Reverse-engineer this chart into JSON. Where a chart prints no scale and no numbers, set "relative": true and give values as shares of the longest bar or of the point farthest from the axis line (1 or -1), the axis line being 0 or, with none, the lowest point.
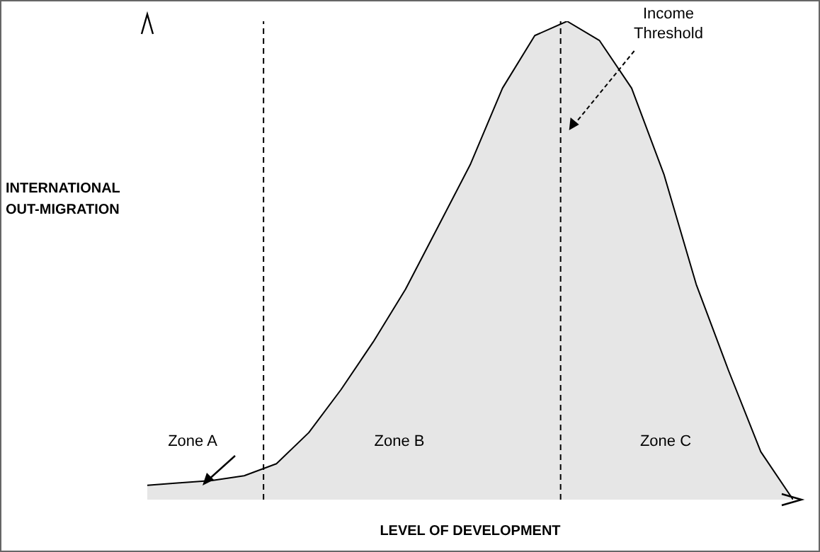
{
  "chart_data": {
    "type": "area",
    "relative": true,
    "xlabel": "LEVEL OF DEVELOPMENT",
    "ylabel": "INTERNATIONAL\nOUT-MIGRATION",
    "categories": [
      null,
      null,
      null,
      null,
      null,
      null,
      null,
      null,
      null,
      null,
      null,
      null,
      null,
      null,
      null,
      null,
      null,
      null,
      null,
      null,
      null
    ],
    "grid": false,
    "legend": false,
    "series": [
      {
        "color": "#000000",
        "values": [
          0.03,
          0.035,
          0.04,
          0.05,
          0.075,
          0.14,
          0.23,
          0.33,
          0.44,
          0.57,
          0.7,
          0.86,
          0.97,
          1,
          0.96,
          0.86,
          0.68,
          0.45,
          0.27,
          0.1,
          0
        ]
      }
    ],
    "annotations": [
      "Zone A",
      "Zone B",
      "Zone C",
      "Income\nThreshold"
    ]
  }
}
